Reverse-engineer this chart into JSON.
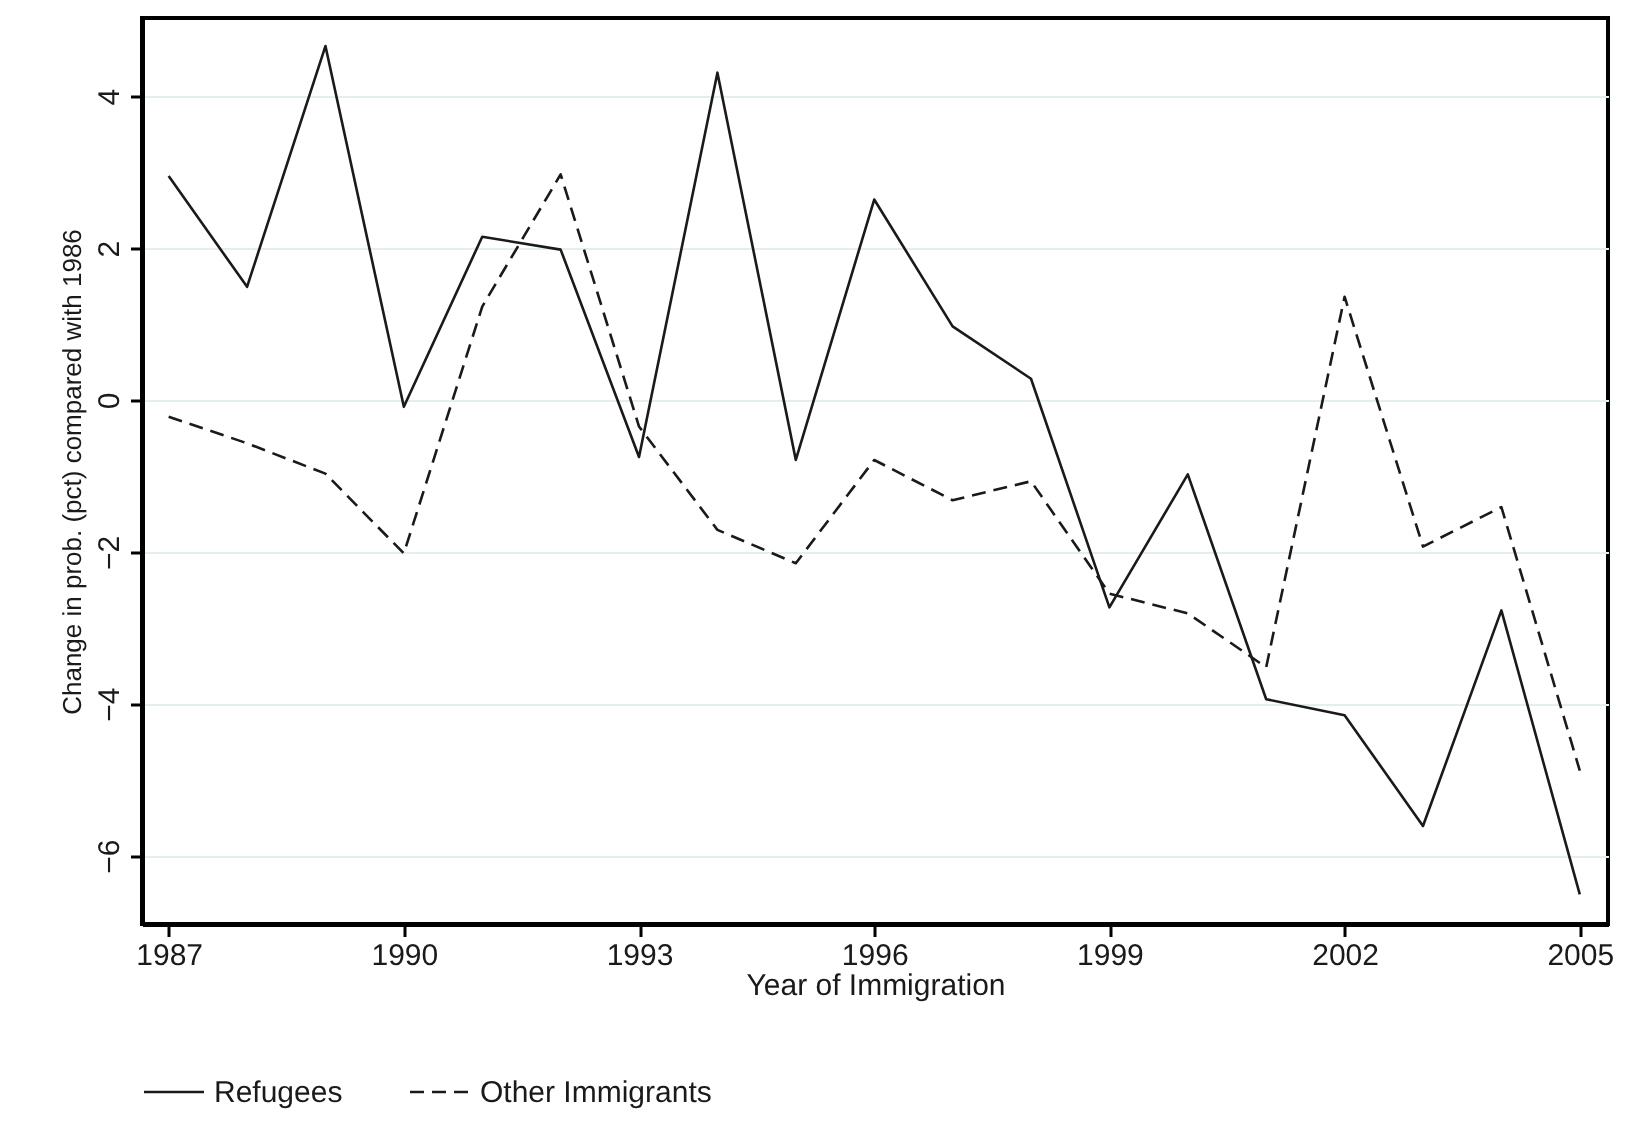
{
  "chart_data": {
    "type": "line",
    "xlabel": "Year of Immigration",
    "ylabel": "Change in prob. (pct) compared with 1986",
    "x": [
      1987,
      1988,
      1989,
      1990,
      1991,
      1992,
      1993,
      1994,
      1995,
      1996,
      1997,
      1998,
      1999,
      2000,
      2001,
      2002,
      2003,
      2004,
      2005
    ],
    "series": [
      {
        "name": "Refugees",
        "color": "#1a1a1a",
        "line_style": "solid",
        "values": [
          2.95,
          1.49,
          4.66,
          -0.09,
          2.15,
          1.98,
          -0.75,
          4.31,
          -0.79,
          2.64,
          0.97,
          0.28,
          -2.73,
          -0.98,
          -3.94,
          -4.15,
          -5.61,
          -2.77,
          -6.51
        ]
      },
      {
        "name": "Other Immigrants",
        "color": "#1a1a1a",
        "line_style": "dashed",
        "values": [
          -0.22,
          -0.57,
          -0.97,
          -2.02,
          1.23,
          2.97,
          -0.35,
          -1.71,
          -2.15,
          -0.79,
          -1.32,
          -1.07,
          -2.55,
          -2.81,
          -3.52,
          1.36,
          -1.93,
          -1.41,
          -4.88
        ]
      }
    ],
    "xlim": [
      1986.66,
      2005.36
    ],
    "xticks": [
      1987,
      1990,
      1993,
      1996,
      1999,
      2002,
      2005
    ],
    "ylim": [
      -6.9,
      5.03
    ],
    "yticks": [
      -6,
      -4,
      -2,
      0,
      2,
      4
    ],
    "grid": "y",
    "legend": "bottom",
    "marker": "none"
  }
}
